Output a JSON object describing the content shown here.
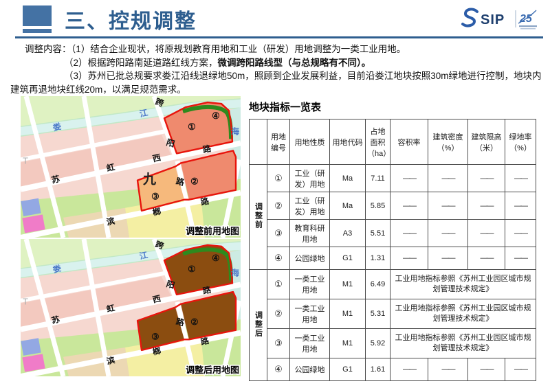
{
  "header": {
    "title": "三、控规调整",
    "logo_sip": "SIP",
    "logo_25": "25"
  },
  "content": {
    "label": "调整内容：",
    "item1": "（1）结合企业现状，将原规划教育用地和工业（研发）用地调整为一类工业用地。",
    "item2_normal": "（2）根据跨阳路南延道路红线方案，",
    "item2_bold": "微调跨阳路线型（与总规略有不同）。",
    "item3": "（3）苏州已批总规要求娄江沿线退绿地50m，照顾到企业发展利益，目前沿娄江地块按照30m绿地进行控制，地块内建筑再退地块红线20m，以满足规范需求。"
  },
  "maps": {
    "chars": {
      "lou": "娄",
      "jiang": "江",
      "kua": "跨",
      "yang": "阳",
      "lu": "路",
      "xi": "西",
      "hong": "虹",
      "su": "苏",
      "lang": "榔",
      "bin": "滨",
      "jiu": "九",
      "hai": "海",
      "t": "T"
    },
    "nums": {
      "n1": "①",
      "n2": "②",
      "n3": "③",
      "n4": "④"
    },
    "before_caption": "调整前用地图",
    "after_caption": "调整后用地图",
    "colors": {
      "plot_industrial_rd": "#EF8A6E",
      "plot_edu": "#F6B97C",
      "plot_m1": "#8B4D10",
      "plot_green_belt": "#2E8A1E",
      "boundary_red": "#E8140C"
    }
  },
  "table": {
    "title": "地块指标一览表",
    "columns": [
      "用地编号",
      "用地性质",
      "用地代码",
      "占地面积（ha）",
      "容积率",
      "建筑密度（%）",
      "建筑限高（米）",
      "绿地率（%）"
    ],
    "dash": "——",
    "note_text": "工业用地指标参照《苏州工业园区城市规划管理技术规定》",
    "groups": [
      {
        "label": "调整前",
        "rows": [
          {
            "num": "①",
            "nature": "工业（研发）用地",
            "code": "Ma",
            "area": "7.11",
            "red": false,
            "dash": true
          },
          {
            "num": "②",
            "nature": "工业（研发）用地",
            "code": "Ma",
            "area": "5.85",
            "red": false,
            "dash": true
          },
          {
            "num": "③",
            "nature": "教育科研用地",
            "code": "A3",
            "area": "5.51",
            "red": false,
            "dash": true
          },
          {
            "num": "④",
            "nature": "公园绿地",
            "code": "G1",
            "area": "1.31",
            "red": false,
            "dash": true
          }
        ]
      },
      {
        "label": "调整后",
        "rows": [
          {
            "num": "①",
            "nature": "一类工业用地",
            "code": "M1",
            "area": "6.49",
            "red": true,
            "note": true
          },
          {
            "num": "②",
            "nature": "一类工业用地",
            "code": "M1",
            "area": "5.31",
            "red": true,
            "note": true
          },
          {
            "num": "③",
            "nature": "一类工业用地",
            "code": "M1",
            "area": "5.92",
            "red": true,
            "note": true
          },
          {
            "num": "④",
            "nature": "公园绿地",
            "code": "G1",
            "area": "1.61",
            "red": true,
            "dash": true
          }
        ]
      }
    ]
  }
}
